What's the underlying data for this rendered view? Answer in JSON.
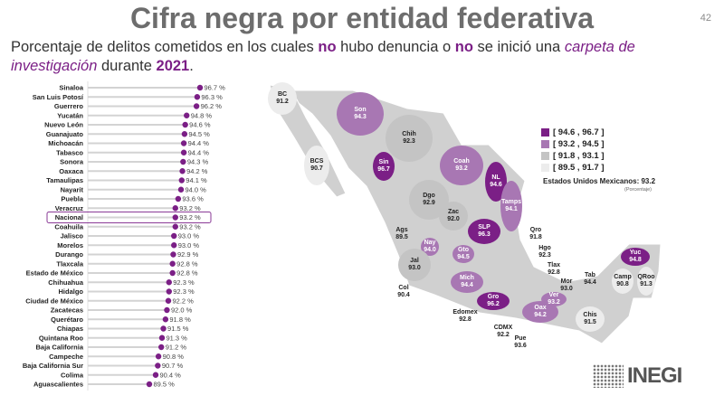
{
  "header": {
    "title": "Cifra negra por entidad federativa",
    "page_number": "42"
  },
  "subtitle": {
    "part1": "Porcentaje de delitos cometidos en los cuales ",
    "no1": "no",
    "part2": " hubo denuncia o ",
    "no2": "no",
    "part3": " se inició una ",
    "italic": "carpeta de investigación",
    "part4": " durante ",
    "year": "2021",
    "part5": "."
  },
  "colors": {
    "accent": "#7b1f86",
    "range1": "#7b1f86",
    "range2": "#a877b3",
    "range3": "#c4c4c4",
    "range4": "#ececec"
  },
  "chart_data": [
    {
      "type": "lollipop",
      "unit": "%",
      "highlight": "Nacional",
      "categories": [
        "Sinaloa",
        "San Luis Potosí",
        "Guerrero",
        "Yucatán",
        "Nuevo León",
        "Guanajuato",
        "Michoacán",
        "Tabasco",
        "Sonora",
        "Oaxaca",
        "Tamaulipas",
        "Nayarit",
        "Puebla",
        "Veracruz",
        "Nacional",
        "Coahuila",
        "Jalisco",
        "Morelos",
        "Durango",
        "Tlaxcala",
        "Estado de México",
        "Chihuahua",
        "Hidalgo",
        "Ciudad de México",
        "Zacatecas",
        "Querétaro",
        "Chiapas",
        "Quintana Roo",
        "Baja California",
        "Campeche",
        "Baja California Sur",
        "Colima",
        "Aguascalientes"
      ],
      "values": [
        96.7,
        96.3,
        96.2,
        94.8,
        94.6,
        94.5,
        94.4,
        94.4,
        94.3,
        94.2,
        94.1,
        94.0,
        93.6,
        93.2,
        93.2,
        93.2,
        93.0,
        93.0,
        92.9,
        92.8,
        92.8,
        92.3,
        92.3,
        92.2,
        92.0,
        91.8,
        91.5,
        91.3,
        91.2,
        90.8,
        90.7,
        90.4,
        89.5
      ],
      "labels": [
        "96.7 %",
        "96.3 %",
        "96.2 %",
        "94.8 %",
        "94.6 %",
        "94.5 %",
        "94.4 %",
        "94.4 %",
        "94.3 %",
        "94.2 %",
        "94.1 %",
        "94.0 %",
        "93.6 %",
        "93.2 %",
        "93.2 %",
        "93.2 %",
        "93.0 %",
        "93.0 %",
        "92.9 %",
        "92.8 %",
        "92.8 %",
        "92.3 %",
        "92.3 %",
        "92.2 %",
        "92.0 %",
        "91.8 %",
        "91.5 %",
        "91.3 %",
        "91.2 %",
        "90.8 %",
        "90.7 %",
        "90.4 %",
        "89.5 %"
      ]
    },
    {
      "type": "choropleth-map",
      "legend": [
        "[ 94.6 , 96.7 ]",
        "[ 93.2 , 94.5 ]",
        "[ 91.8 , 93.1 ]",
        "[ 89.5 , 91.7 ]"
      ],
      "national_label": "Estados Unidos Mexicanos:",
      "national_value": "93.2",
      "unit_note": "(Porcentaje)",
      "states": [
        {
          "abbr": "BC",
          "value": "91.2",
          "range": 3
        },
        {
          "abbr": "BCS",
          "value": "90.7",
          "range": 3
        },
        {
          "abbr": "Son",
          "value": "94.3",
          "range": 1
        },
        {
          "abbr": "Chih",
          "value": "92.3",
          "range": 2
        },
        {
          "abbr": "Coah",
          "value": "93.2",
          "range": 1
        },
        {
          "abbr": "NL",
          "value": "94.6",
          "range": 0
        },
        {
          "abbr": "Tamps",
          "value": "94.1",
          "range": 1
        },
        {
          "abbr": "Sin",
          "value": "96.7",
          "range": 0
        },
        {
          "abbr": "Dgo",
          "value": "92.9",
          "range": 2
        },
        {
          "abbr": "Zac",
          "value": "92.0",
          "range": 2
        },
        {
          "abbr": "SLP",
          "value": "96.3",
          "range": 0
        },
        {
          "abbr": "Nay",
          "value": "94.0",
          "range": 1
        },
        {
          "abbr": "Ags",
          "value": "89.5",
          "range": 3
        },
        {
          "abbr": "Jal",
          "value": "93.0",
          "range": 2
        },
        {
          "abbr": "Gto",
          "value": "94.5",
          "range": 1
        },
        {
          "abbr": "Qro",
          "value": "91.8",
          "range": 2
        },
        {
          "abbr": "Hgo",
          "value": "92.3",
          "range": 2
        },
        {
          "abbr": "Mich",
          "value": "94.4",
          "range": 1
        },
        {
          "abbr": "Col",
          "value": "90.4",
          "range": 3
        },
        {
          "abbr": "Edomex",
          "value": "92.8",
          "range": 2
        },
        {
          "abbr": "CDMX",
          "value": "92.2",
          "range": 2
        },
        {
          "abbr": "Tlax",
          "value": "92.8",
          "range": 2
        },
        {
          "abbr": "Mor",
          "value": "93.0",
          "range": 2
        },
        {
          "abbr": "Pue",
          "value": "93.6",
          "range": 1
        },
        {
          "abbr": "Gro",
          "value": "96.2",
          "range": 0
        },
        {
          "abbr": "Oax",
          "value": "94.2",
          "range": 1
        },
        {
          "abbr": "Ver",
          "value": "93.2",
          "range": 1
        },
        {
          "abbr": "Tab",
          "value": "94.4",
          "range": 1
        },
        {
          "abbr": "Chis",
          "value": "91.5",
          "range": 3
        },
        {
          "abbr": "Camp",
          "value": "90.8",
          "range": 3
        },
        {
          "abbr": "Yuc",
          "value": "94.8",
          "range": 0
        },
        {
          "abbr": "QRoo",
          "value": "91.3",
          "range": 3
        }
      ]
    }
  ],
  "logo": {
    "text": "INEGI"
  }
}
